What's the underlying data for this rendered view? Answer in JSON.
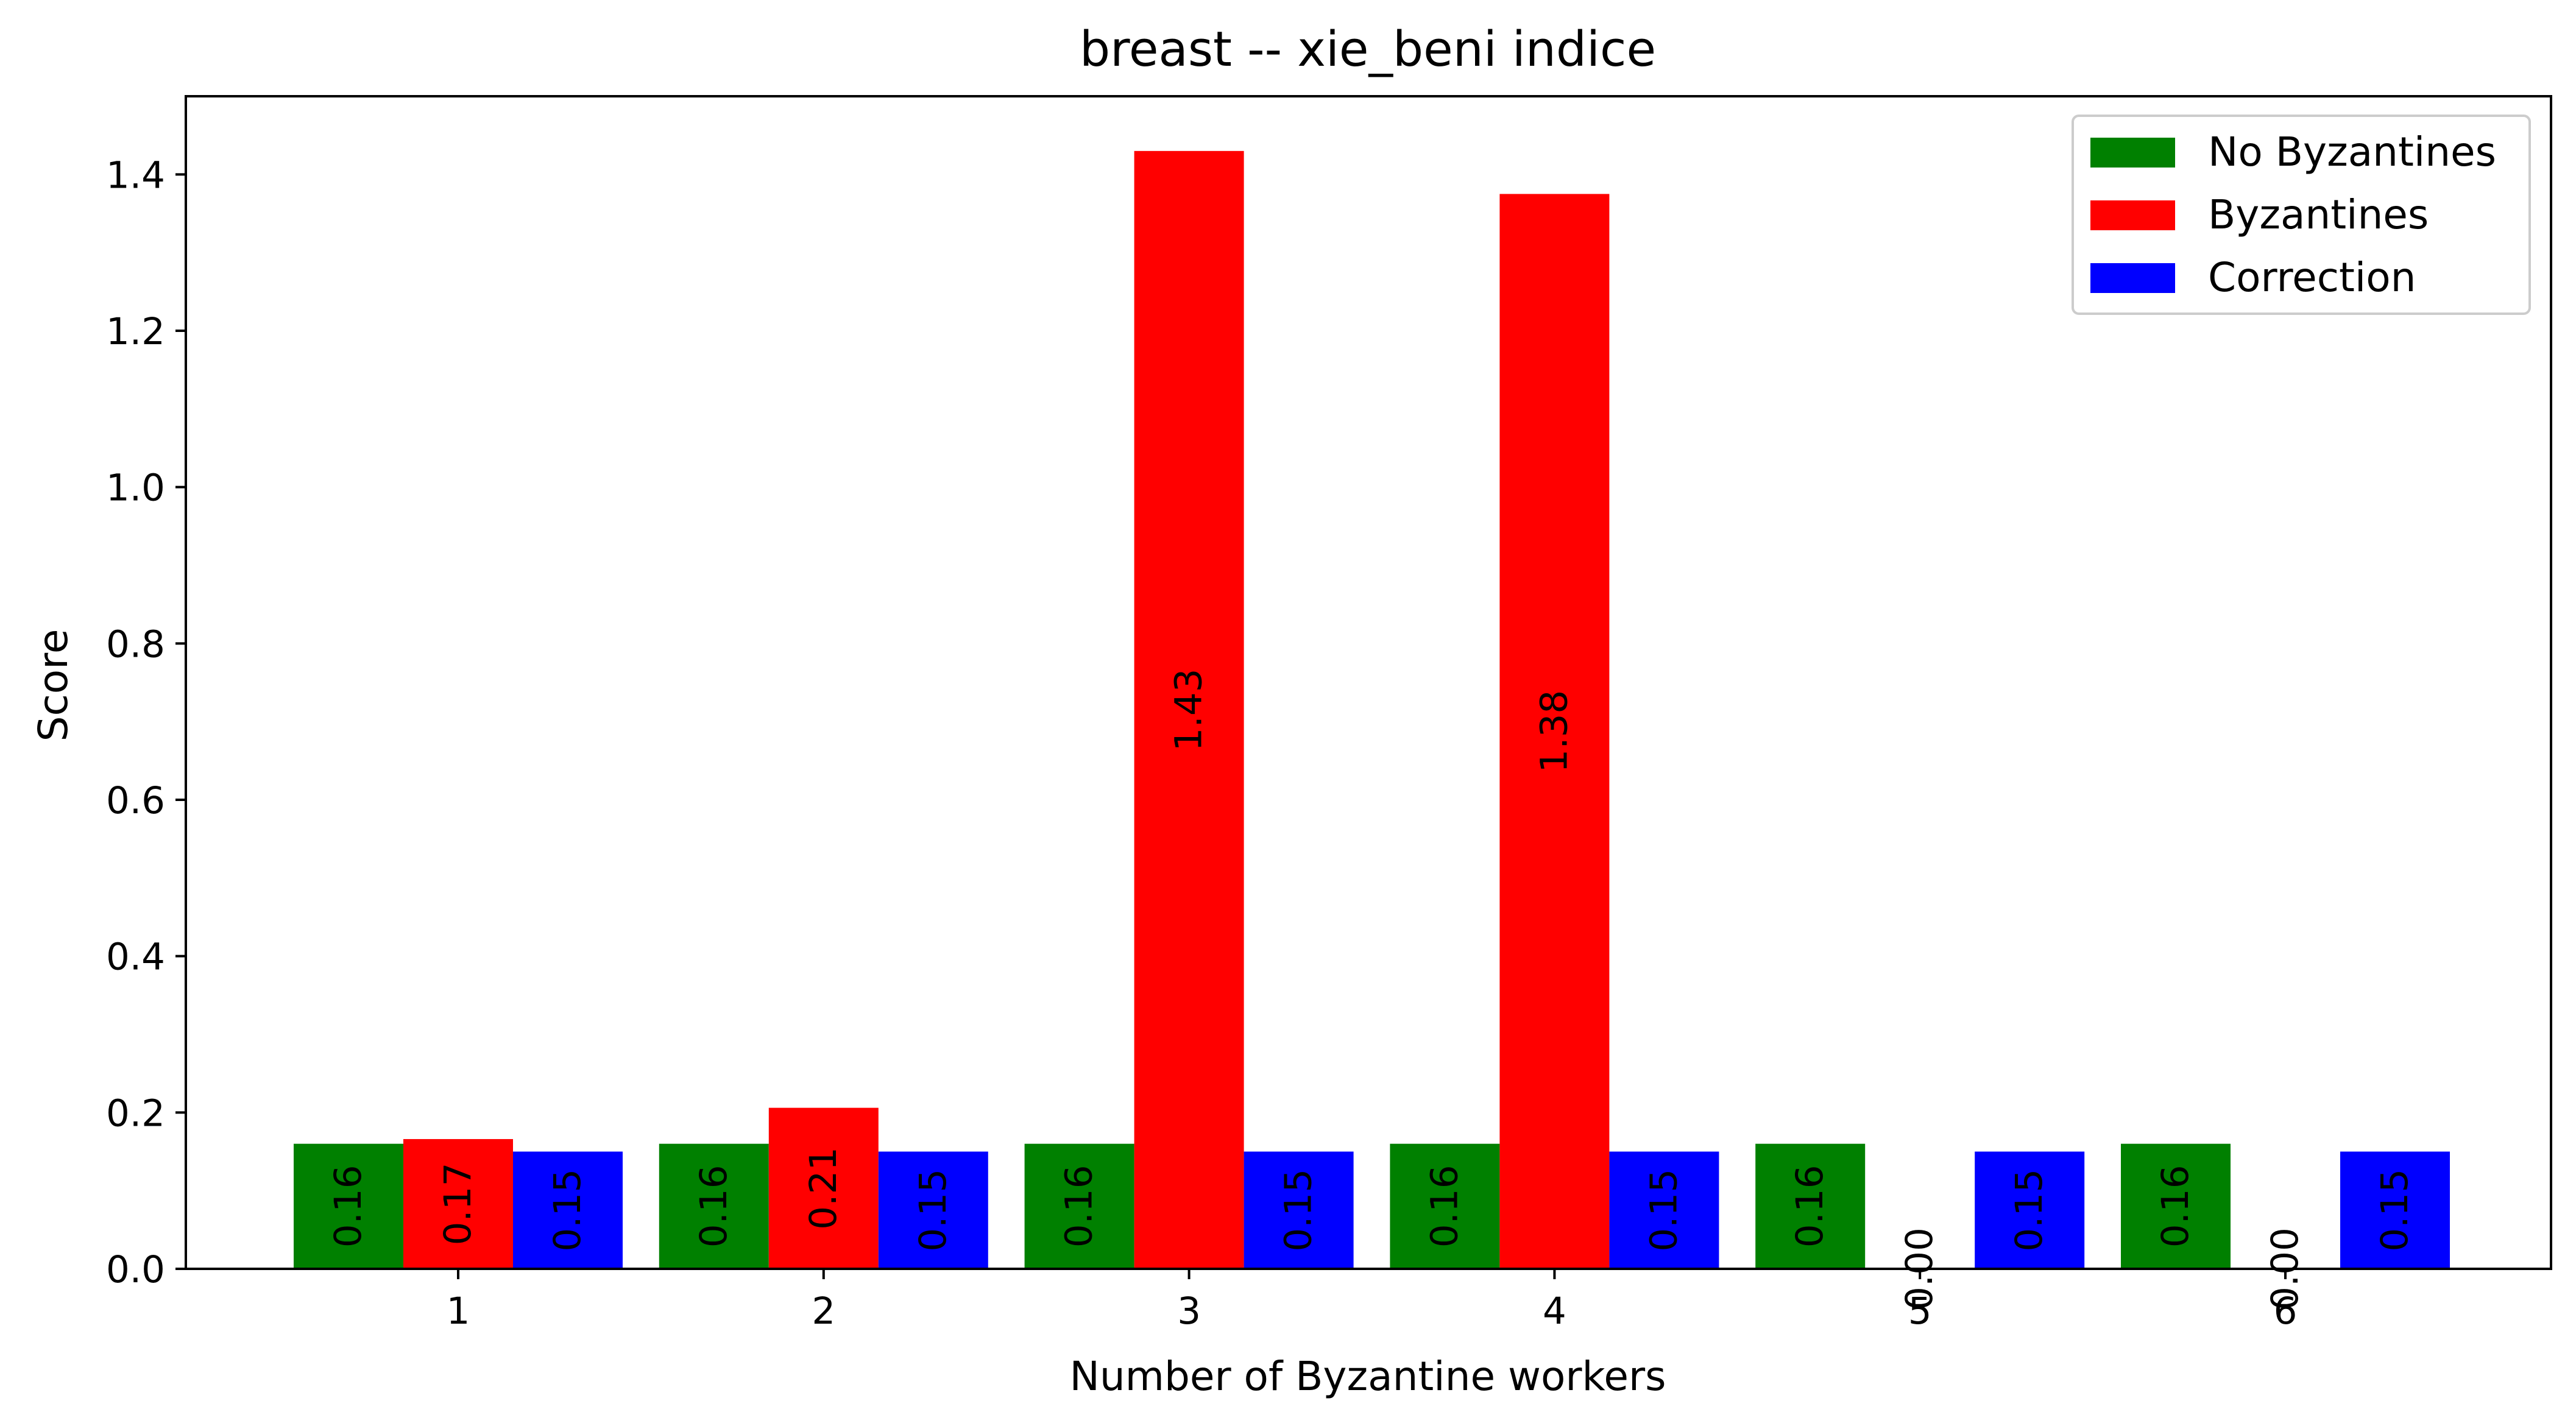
{
  "chart_data": {
    "type": "bar",
    "title": "breast -- xie_beni indice",
    "xlabel": "Number of Byzantine workers",
    "ylabel": "Score",
    "categories": [
      "1",
      "2",
      "3",
      "4",
      "5",
      "6"
    ],
    "series": [
      {
        "name": "No Byzantines",
        "color": "#008000",
        "values": [
          0.16,
          0.16,
          0.16,
          0.16,
          0.16,
          0.16
        ],
        "labels": [
          "0.16",
          "0.16",
          "0.16",
          "0.16",
          "0.16",
          "0.16"
        ]
      },
      {
        "name": "Byzantines",
        "color": "#ff0000",
        "values": [
          0.166,
          0.206,
          1.43,
          1.375,
          0.0,
          0.0
        ],
        "labels": [
          "0.17",
          "0.21",
          "1.43",
          "1.38",
          "0.00",
          "0.00"
        ]
      },
      {
        "name": "Correction",
        "color": "#0000ff",
        "values": [
          0.15,
          0.15,
          0.15,
          0.15,
          0.15,
          0.15
        ],
        "labels": [
          "0.15",
          "0.15",
          "0.15",
          "0.15",
          "0.15",
          "0.15"
        ]
      }
    ],
    "ylim": [
      0,
      1.5
    ],
    "yticks": [
      "0.0",
      "0.2",
      "0.4",
      "0.6",
      "0.8",
      "1.0",
      "1.2",
      "1.4"
    ],
    "ytick_values": [
      0,
      0.2,
      0.4,
      0.6,
      0.8,
      1.0,
      1.2,
      1.4
    ],
    "grid": false,
    "legend_position": "top-right"
  }
}
